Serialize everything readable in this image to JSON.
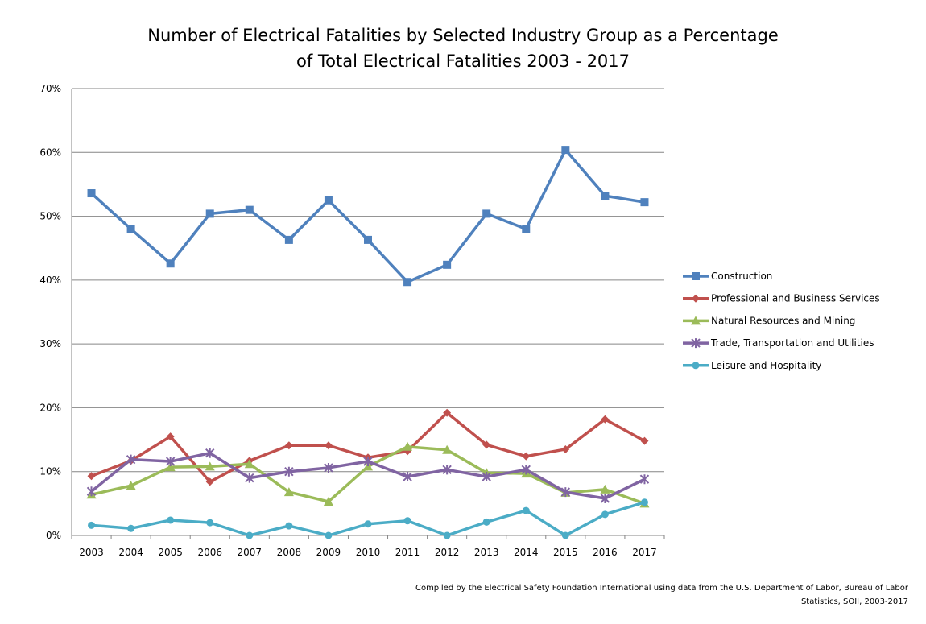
{
  "chart_data": {
    "type": "line",
    "title": "Number of Electrical Fatalities by Selected Industry Group as a Percentage",
    "title_line2": "of Total Electrical Fatalities 2003 - 2017",
    "source_line1": "Compiled by the Electrical Safety Foundation International using data from the U.S. Department of Labor, Bureau of Labor",
    "source_line2": "Statistics, SOII, 2003-2017",
    "x": [
      "2003",
      "2004",
      "2005",
      "2006",
      "2007",
      "2008",
      "2009",
      "2010",
      "2011",
      "2012",
      "2013",
      "2014",
      "2015",
      "2016",
      "2017"
    ],
    "ylim": [
      0,
      70
    ],
    "yticks": [
      0,
      10,
      20,
      30,
      40,
      50,
      60,
      70
    ],
    "ytick_labels": [
      "0%",
      "10%",
      "20%",
      "30%",
      "40%",
      "50%",
      "60%",
      "70%"
    ],
    "grid": "horizontal",
    "legend_placement": "right",
    "series": [
      {
        "name": "Construction",
        "color": "#4F81BD",
        "marker": "square",
        "values": [
          53.6,
          48.0,
          42.6,
          50.4,
          51.0,
          46.3,
          52.5,
          46.3,
          39.7,
          42.4,
          50.4,
          48.0,
          60.4,
          53.2,
          52.2
        ]
      },
      {
        "name": "Professional and Business Services",
        "color": "#C0504D",
        "marker": "diamond",
        "values": [
          9.3,
          11.7,
          15.5,
          8.4,
          11.7,
          14.1,
          14.1,
          12.2,
          13.2,
          19.2,
          14.2,
          12.4,
          13.5,
          18.2,
          14.8
        ]
      },
      {
        "name": "Natural Resources and Mining",
        "color": "#9BBB59",
        "marker": "triangle",
        "values": [
          6.4,
          7.8,
          10.7,
          10.8,
          11.2,
          6.8,
          5.3,
          10.8,
          13.9,
          13.4,
          9.8,
          9.7,
          6.7,
          7.2,
          5.0
        ]
      },
      {
        "name": "Trade, Transportation and Utilities",
        "color": "#8064A2",
        "marker": "star",
        "values": [
          6.9,
          11.9,
          11.6,
          12.9,
          9.0,
          10.0,
          10.6,
          11.6,
          9.2,
          10.3,
          9.2,
          10.3,
          6.8,
          5.8,
          8.8
        ]
      },
      {
        "name": "Leisure and Hospitality",
        "color": "#4BACC6",
        "marker": "circle",
        "values": [
          1.6,
          1.1,
          2.4,
          2.0,
          0,
          1.5,
          0,
          1.8,
          2.3,
          0,
          2.1,
          3.9,
          0,
          3.3,
          5.2
        ]
      }
    ]
  }
}
